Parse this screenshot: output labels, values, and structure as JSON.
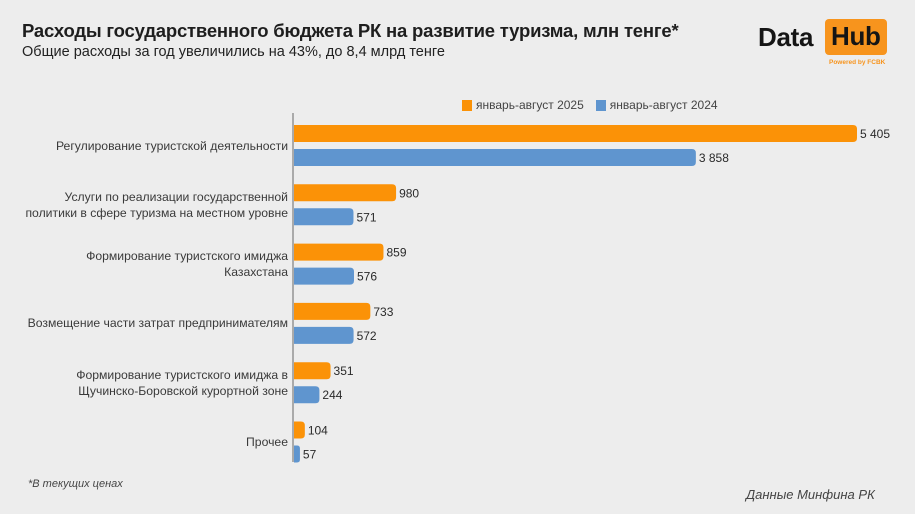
{
  "header": {
    "title": "Расходы государственного бюджета РК на развитие туризма, млн тенге*",
    "subtitle": "Общие расходы за год увеличились на 43%, до 8,4 млрд тенге"
  },
  "logo": {
    "word1": "Data",
    "word2": "Hub",
    "tagline": "Powered by FCBK",
    "accent_color": "#f7941d"
  },
  "footer": {
    "footnote": "*В текущих ценах",
    "source": "Данные Минфина РК"
  },
  "chart_data": {
    "type": "bar",
    "orientation": "horizontal",
    "title": "Расходы государственного бюджета РК на развитие туризма, млн тенге*",
    "subtitle": "Общие расходы за год увеличились на 43%, до 8,4 млрд тенге",
    "xlabel": "",
    "ylabel": "",
    "xlim": [
      0,
      5405
    ],
    "grid": false,
    "legend_position": "top-right",
    "categories": [
      [
        "Регулирование туристской деятельности"
      ],
      [
        "Услуги по реализации государственной",
        "политики в сфере туризма на местном уровне"
      ],
      [
        "Формирование туристского имиджа",
        "Казахстана"
      ],
      [
        "Возмещение части затрат предпринимателям"
      ],
      [
        "Формирование туристского имиджа в",
        "Щучинско-Боровской курортной зоне"
      ],
      [
        "Прочее"
      ]
    ],
    "series": [
      {
        "name": "январь-август 2025",
        "color": "#fb9207",
        "values": [
          5405,
          980,
          859,
          733,
          351,
          104
        ],
        "labels": [
          "5 405",
          "980",
          "859",
          "733",
          "351",
          "104"
        ]
      },
      {
        "name": "январь-август 2024",
        "color": "#5f95cf",
        "values": [
          3858,
          571,
          576,
          572,
          244,
          57
        ],
        "labels": [
          "3 858",
          "571",
          "576",
          "572",
          "244",
          "57"
        ]
      }
    ]
  }
}
